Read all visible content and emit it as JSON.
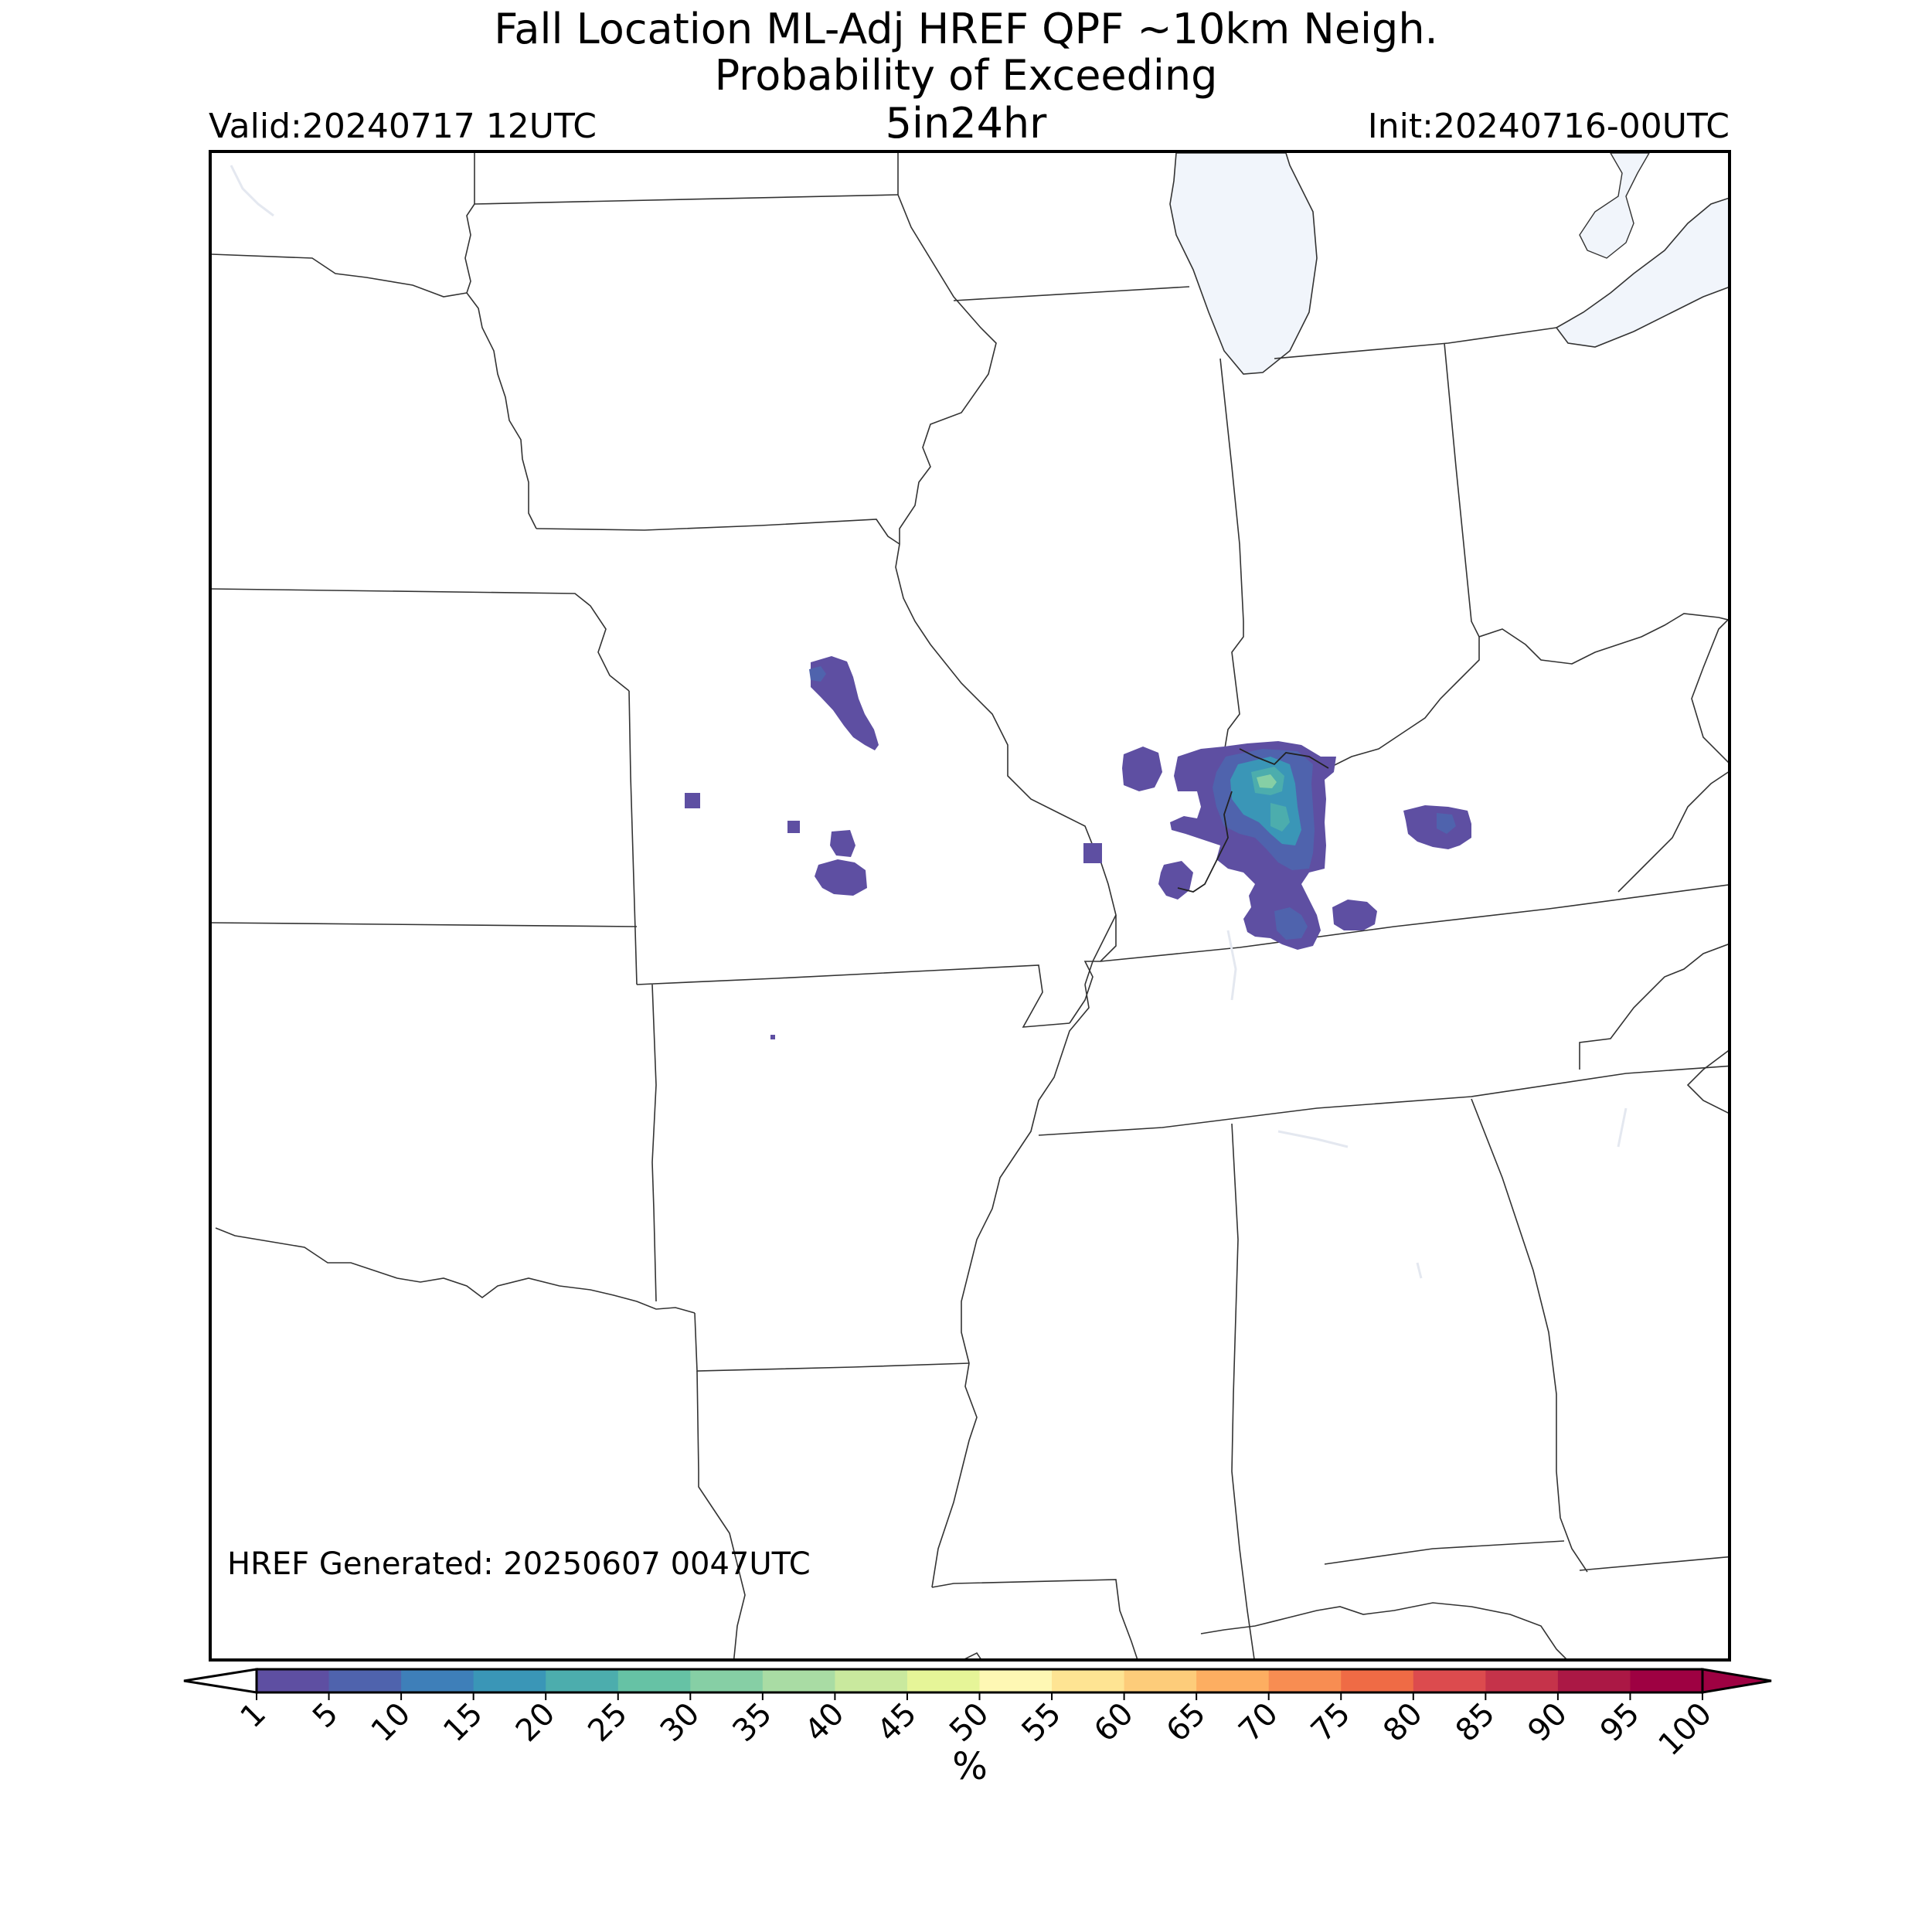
{
  "header": {
    "title_line1": "Fall Location ML-Adj HREF QPF ~10km Neigh.",
    "title_line2": "Probability of Exceeding",
    "title_line3": "5in24hr",
    "valid": "Valid:20240717 12UTC",
    "init": "Init:20240716-00UTC"
  },
  "map": {
    "generated": "HREF Generated: 20250607 0047UTC",
    "region": "Central US (Midwest / Mid-South)",
    "water_color": "#f1f5fb",
    "border_color": "#333333"
  },
  "colorbar": {
    "unit": "%",
    "ticks": [
      "1",
      "5",
      "10",
      "15",
      "20",
      "25",
      "30",
      "35",
      "40",
      "45",
      "50",
      "55",
      "60",
      "65",
      "70",
      "75",
      "80",
      "85",
      "90",
      "95",
      "100"
    ],
    "colors": [
      "#5e4fa2",
      "#4f63ad",
      "#3e7fb9",
      "#3a96b7",
      "#4cadad",
      "#66c2a5",
      "#86cfa5",
      "#a9dca4",
      "#c9e99e",
      "#e6f598",
      "#fef8b4",
      "#fee493",
      "#fdcc7a",
      "#fdae61",
      "#f88d52",
      "#ef6b45",
      "#dc4b4e",
      "#c5334a",
      "#ab1845",
      "#9e0142"
    ],
    "under_color": "#ffffff",
    "over_color": "#9e0142"
  }
}
